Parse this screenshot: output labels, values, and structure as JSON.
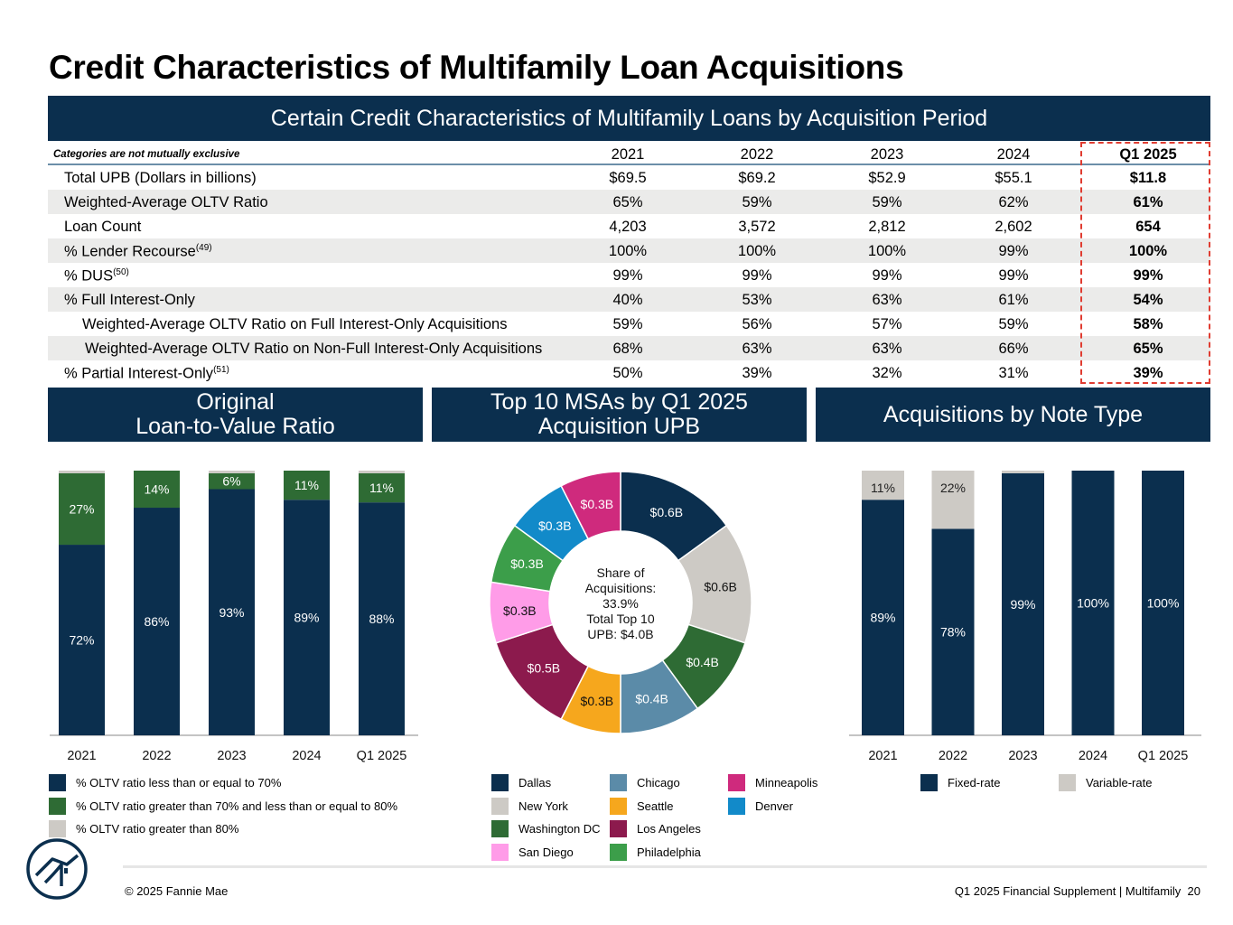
{
  "title": "Credit Characteristics of Multifamily Loan Acquisitions",
  "table": {
    "header": "Certain Credit Characteristics of Multifamily Loans by Acquisition Period",
    "note": "Categories are not mutually exclusive",
    "columns": [
      "2021",
      "2022",
      "2023",
      "2024",
      "Q1 2025"
    ],
    "rows": [
      {
        "label": "Total UPB (Dollars in billions)",
        "sup": "",
        "values": [
          "$69.5",
          "$69.2",
          "$52.9",
          "$55.1",
          "$11.8"
        ]
      },
      {
        "label": "Weighted-Average OLTV Ratio",
        "sup": "",
        "values": [
          "65%",
          "59%",
          "59%",
          "62%",
          "61%"
        ]
      },
      {
        "label": "Loan Count",
        "sup": "",
        "values": [
          "4,203",
          "3,572",
          "2,812",
          "2,602",
          "654"
        ]
      },
      {
        "label": "% Lender Recourse",
        "sup": "(49)",
        "values": [
          "100%",
          "100%",
          "100%",
          "99%",
          "100%"
        ]
      },
      {
        "label": "% DUS",
        "sup": "(50)",
        "values": [
          "99%",
          "99%",
          "99%",
          "99%",
          "99%"
        ]
      },
      {
        "label": "% Full Interest-Only",
        "sup": "",
        "values": [
          "40%",
          "53%",
          "63%",
          "61%",
          "54%"
        ]
      },
      {
        "label": "Weighted-Average OLTV Ratio on Full Interest-Only Acquisitions",
        "sup": "",
        "values": [
          "59%",
          "56%",
          "57%",
          "59%",
          "58%"
        ]
      },
      {
        "label": "Weighted-Average OLTV Ratio on Non-Full Interest-Only Acquisitions",
        "sup": "",
        "values": [
          "68%",
          "63%",
          "63%",
          "66%",
          "65%"
        ]
      },
      {
        "label": "% Partial Interest-Only",
        "sup": "(51)",
        "values": [
          "50%",
          "39%",
          "32%",
          "31%",
          "39%"
        ]
      }
    ]
  },
  "oltv_panel": {
    "header_line1": "Original",
    "header_line2": "Loan-to-Value Ratio",
    "legend": [
      {
        "label": "% OLTV ratio less than or equal to 70%",
        "color": "#0b2f4e"
      },
      {
        "label": "% OLTV ratio greater than 70% and less than or equal to 80%",
        "color": "#2e6b34"
      },
      {
        "label": "% OLTV ratio greater than 80%",
        "color": "#cdcac5"
      }
    ]
  },
  "msa_panel": {
    "header_line1": "Top 10 MSAs by Q1 2025",
    "header_line2": "Acquisition UPB",
    "center_text": [
      "Share of",
      "Acquisitions:",
      "33.9%",
      "Total Top 10",
      "UPB: $4.0B"
    ],
    "legend": [
      {
        "label": "Dallas",
        "color": "#0b2f4e"
      },
      {
        "label": "New York",
        "color": "#cdcac5"
      },
      {
        "label": "Washington DC",
        "color": "#2e6b34"
      },
      {
        "label": "San Diego",
        "color": "#ff9ce8"
      },
      {
        "label": "Chicago",
        "color": "#5b8ba8"
      },
      {
        "label": "Seattle",
        "color": "#f6a71d"
      },
      {
        "label": "Los Angeles",
        "color": "#8c1a4d"
      },
      {
        "label": "Philadelphia",
        "color": "#3c9e4a"
      },
      {
        "label": "Minneapolis",
        "color": "#cf2a7d"
      },
      {
        "label": "Denver",
        "color": "#128ac9"
      }
    ]
  },
  "note_panel": {
    "header": "Acquisitions by Note Type",
    "legend": [
      {
        "label": "Fixed-rate",
        "color": "#0b2f4e"
      },
      {
        "label": "Variable-rate",
        "color": "#cdcac5"
      }
    ]
  },
  "chart_data": [
    {
      "type": "bar",
      "stacked": true,
      "categories": [
        "2021",
        "2022",
        "2023",
        "2024",
        "Q1 2025"
      ],
      "series": [
        {
          "name": "% OLTV ratio less than or equal to 70%",
          "values": [
            72,
            86,
            93,
            89,
            88
          ],
          "labels": [
            "72%",
            "86%",
            "93%",
            "89%",
            "88%"
          ],
          "color": "#0b2f4e"
        },
        {
          "name": "% OLTV ratio greater than 70% and less than or equal to 80%",
          "values": [
            27,
            14,
            6,
            11,
            11
          ],
          "labels": [
            "27%",
            "14%",
            "6%",
            "11%",
            "11%"
          ],
          "color": "#2e6b34"
        },
        {
          "name": "% OLTV ratio greater than 80%",
          "values": [
            1,
            0,
            1,
            0,
            1
          ],
          "labels": [
            "",
            "",
            "",
            "",
            ""
          ],
          "color": "#cdcac5"
        }
      ],
      "ylim": [
        0,
        100
      ]
    },
    {
      "type": "pie",
      "donut": true,
      "slices": [
        {
          "name": "Dallas",
          "value": 0.6,
          "label": "$0.6B",
          "color": "#0b2f4e"
        },
        {
          "name": "New York",
          "value": 0.6,
          "label": "$0.6B",
          "color": "#cdcac5"
        },
        {
          "name": "Washington DC",
          "value": 0.4,
          "label": "$0.4B",
          "color": "#2e6b34"
        },
        {
          "name": "Chicago",
          "value": 0.4,
          "label": "$0.4B",
          "color": "#5b8ba8"
        },
        {
          "name": "Seattle",
          "value": 0.3,
          "label": "$0.3B",
          "color": "#f6a71d"
        },
        {
          "name": "Los Angeles",
          "value": 0.5,
          "label": "$0.5B",
          "color": "#8c1a4d"
        },
        {
          "name": "San Diego",
          "value": 0.3,
          "label": "$0.3B",
          "color": "#ff9ce8"
        },
        {
          "name": "Philadelphia",
          "value": 0.3,
          "label": "$0.3B",
          "color": "#3c9e4a"
        },
        {
          "name": "Denver",
          "value": 0.3,
          "label": "$0.3B",
          "color": "#128ac9"
        },
        {
          "name": "Minneapolis",
          "value": 0.3,
          "label": "$0.3B",
          "color": "#cf2a7d"
        }
      ]
    },
    {
      "type": "bar",
      "stacked": true,
      "categories": [
        "2021",
        "2022",
        "2023",
        "2024",
        "Q1 2025"
      ],
      "series": [
        {
          "name": "Fixed-rate",
          "values": [
            89,
            78,
            99,
            100,
            100
          ],
          "labels": [
            "89%",
            "78%",
            "99%",
            "100%",
            "100%"
          ],
          "color": "#0b2f4e"
        },
        {
          "name": "Variable-rate",
          "values": [
            11,
            22,
            1,
            0,
            0
          ],
          "labels": [
            "11%",
            "22%",
            "",
            "",
            ""
          ],
          "color": "#cdcac5"
        }
      ],
      "ylim": [
        0,
        100
      ]
    }
  ],
  "footer": {
    "copyright": "© 2025 Fannie Mae",
    "right": "Q1 2025 Financial Supplement | Multifamily  20"
  }
}
